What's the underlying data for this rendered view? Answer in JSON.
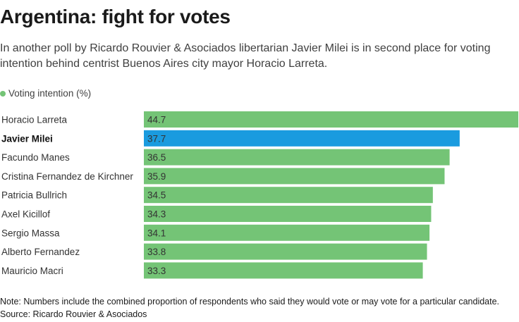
{
  "header": {
    "title": "Argentina: fight for votes",
    "subtitle": "In another poll by Ricardo Rouvier & Asociados libertarian Javier Milei is in second place for voting intention behind centrist Buenos Aires city mayor Horacio Larreta."
  },
  "legend": {
    "label": "Voting intention (%)",
    "color": "#74c476"
  },
  "colors": {
    "bar": "#74c476",
    "highlight": "#1a9bdf",
    "label_text": "#333333",
    "value_text": "#333333"
  },
  "chart_data": {
    "type": "bar",
    "orientation": "horizontal",
    "categories": [
      "Horacio Larreta",
      "Javier Milei",
      "Facundo Manes",
      "Cristina Fernandez de Kirchner",
      "Patricia Bullrich",
      "Axel Kicillof",
      "Sergio Massa",
      "Alberto Fernandez",
      "Mauricio Macri"
    ],
    "values": [
      44.7,
      37.7,
      36.5,
      35.9,
      34.5,
      34.3,
      34.1,
      33.8,
      33.3
    ],
    "value_labels": [
      "44.7",
      "37.7",
      "36.5",
      "35.9",
      "34.5",
      "34.3",
      "34.1",
      "33.8",
      "33.3"
    ],
    "highlighted": [
      "Javier Milei"
    ],
    "series": [
      {
        "name": "Voting intention (%)",
        "values": [
          44.7,
          37.7,
          36.5,
          35.9,
          34.5,
          34.3,
          34.1,
          33.8,
          33.3
        ]
      }
    ],
    "xlim": [
      0,
      44.7
    ],
    "grid": false,
    "legend_position": "top-left"
  },
  "footer": {
    "note": "Note: Numbers include the combined proportion of respondents who said they would vote or may vote for a particular candidate.",
    "source": "Source: Ricardo Rouvier & Asociados"
  }
}
